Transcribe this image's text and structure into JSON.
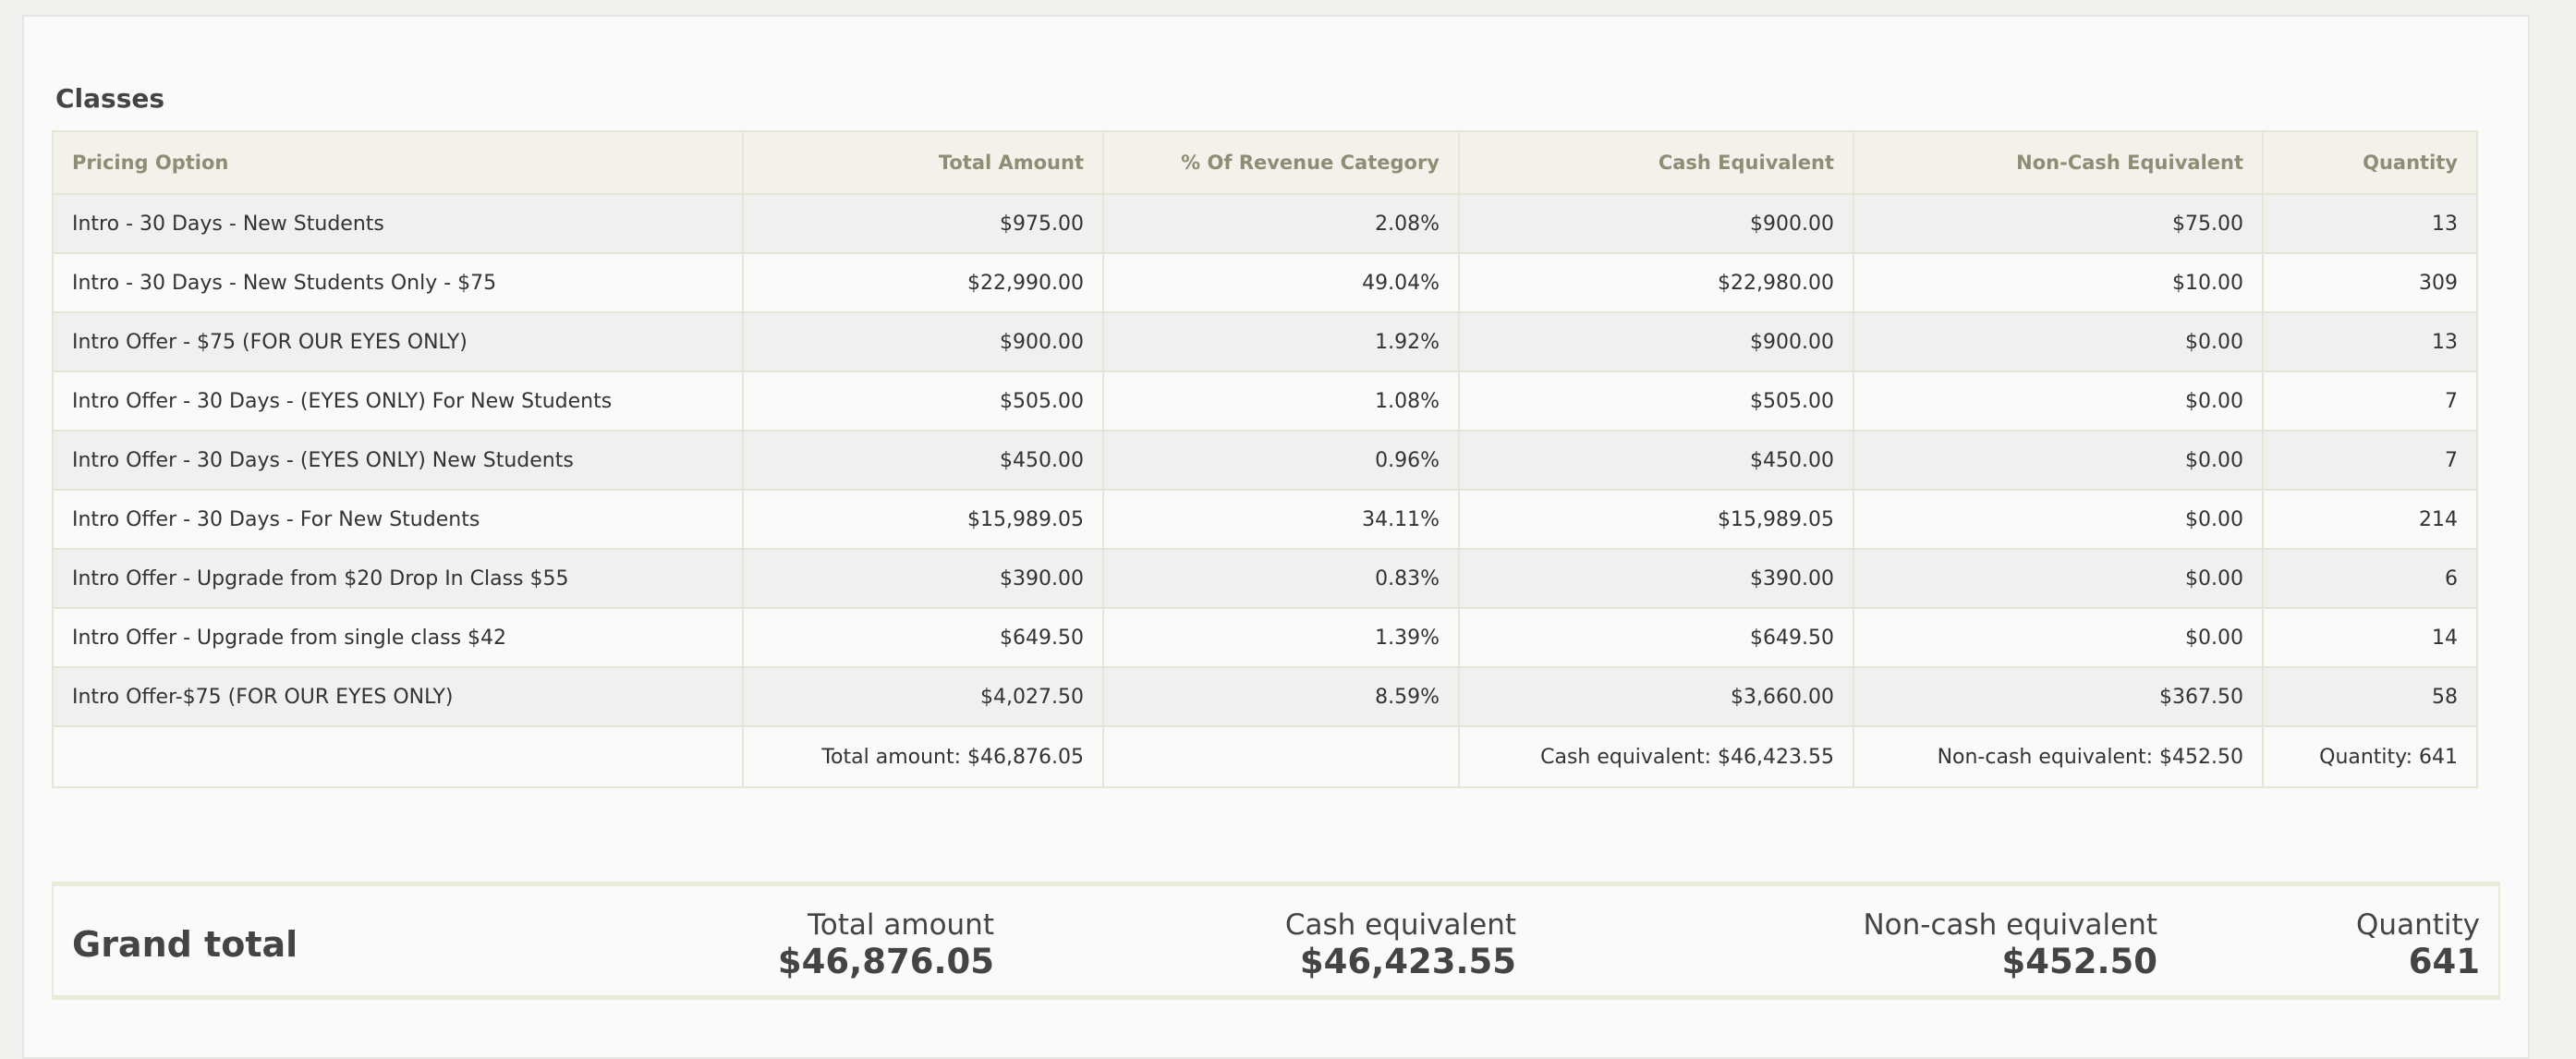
{
  "section": {
    "title": "Classes"
  },
  "table": {
    "headers": {
      "pricing_option": "Pricing Option",
      "total_amount": "Total Amount",
      "pct_revenue": "% Of Revenue Category",
      "cash_equivalent": "Cash Equivalent",
      "non_cash_equivalent": "Non-Cash Equivalent",
      "quantity": "Quantity"
    },
    "rows": [
      {
        "option": "Intro - 30 Days - New Students",
        "total": "$975.00",
        "pct": "2.08%",
        "cash": "$900.00",
        "noncash": "$75.00",
        "qty": "13"
      },
      {
        "option": "Intro - 30 Days - New Students Only - $75",
        "total": "$22,990.00",
        "pct": "49.04%",
        "cash": "$22,980.00",
        "noncash": "$10.00",
        "qty": "309"
      },
      {
        "option": "Intro Offer - $75 (FOR OUR EYES ONLY)",
        "total": "$900.00",
        "pct": "1.92%",
        "cash": "$900.00",
        "noncash": "$0.00",
        "qty": "13"
      },
      {
        "option": "Intro Offer - 30 Days - (EYES ONLY) For New Students",
        "total": "$505.00",
        "pct": "1.08%",
        "cash": "$505.00",
        "noncash": "$0.00",
        "qty": "7"
      },
      {
        "option": "Intro Offer - 30 Days - (EYES ONLY) New Students",
        "total": "$450.00",
        "pct": "0.96%",
        "cash": "$450.00",
        "noncash": "$0.00",
        "qty": "7"
      },
      {
        "option": "Intro Offer - 30 Days - For New Students",
        "total": "$15,989.05",
        "pct": "34.11%",
        "cash": "$15,989.05",
        "noncash": "$0.00",
        "qty": "214"
      },
      {
        "option": "Intro Offer - Upgrade from $20 Drop In Class $55",
        "total": "$390.00",
        "pct": "0.83%",
        "cash": "$390.00",
        "noncash": "$0.00",
        "qty": "6"
      },
      {
        "option": "Intro Offer - Upgrade from single class $42",
        "total": "$649.50",
        "pct": "1.39%",
        "cash": "$649.50",
        "noncash": "$0.00",
        "qty": "14"
      },
      {
        "option": "Intro Offer-$75 (FOR OUR EYES ONLY)",
        "total": "$4,027.50",
        "pct": "8.59%",
        "cash": "$3,660.00",
        "noncash": "$367.50",
        "qty": "58"
      }
    ],
    "footer": {
      "total_amount": "Total amount: $46,876.05",
      "cash_equivalent": "Cash equivalent: $46,423.55",
      "non_cash_equivalent": "Non-cash equivalent: $452.50",
      "quantity": "Quantity: 641"
    }
  },
  "grand_total": {
    "label": "Grand total",
    "total_amount_caption": "Total amount",
    "total_amount_value": "$46,876.05",
    "cash_equivalent_caption": "Cash equivalent",
    "cash_equivalent_value": "$46,423.55",
    "non_cash_equivalent_caption": "Non-cash equivalent",
    "non_cash_equivalent_value": "$452.50",
    "quantity_caption": "Quantity",
    "quantity_value": "641"
  },
  "colors": {
    "header_background": "#f2f2ea",
    "header_text": "#8e8d76",
    "row_stripe": "#f0f0f0",
    "border": "#e6e5d6"
  }
}
